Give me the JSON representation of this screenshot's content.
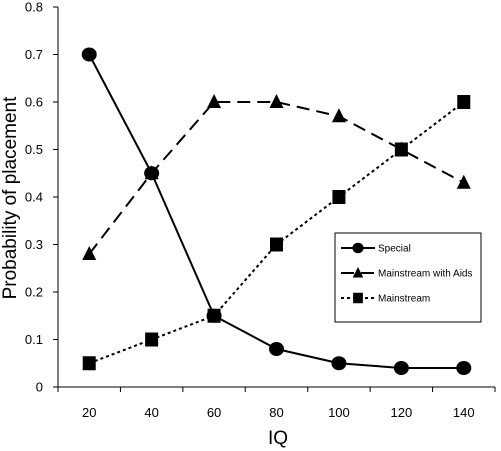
{
  "chart_data": {
    "type": "line",
    "xlabel": "IQ",
    "ylabel": "Probability  of placement",
    "categories": [
      "20",
      "40",
      "60",
      "80",
      "100",
      "120",
      "140"
    ],
    "x": [
      20,
      40,
      60,
      80,
      100,
      120,
      140
    ],
    "ylim": [
      0,
      0.8
    ],
    "yticks": [
      "0",
      "0.1",
      "0.2",
      "0.3",
      "0.4",
      "0.5",
      "0.6",
      "0.7",
      "0.8"
    ],
    "grid": false,
    "legend_position": "right",
    "series": [
      {
        "name": "Special",
        "marker": "circle",
        "line": "solid",
        "values": [
          0.7,
          0.45,
          0.15,
          0.08,
          0.05,
          0.04,
          0.04
        ]
      },
      {
        "name": "Mainstream with Aids",
        "marker": "triangle",
        "line": "dashed",
        "values": [
          0.28,
          0.45,
          0.6,
          0.6,
          0.57,
          0.5,
          0.43
        ]
      },
      {
        "name": "Mainstream",
        "marker": "square",
        "line": "dotted",
        "values": [
          0.05,
          0.1,
          0.15,
          0.3,
          0.4,
          0.5,
          0.6
        ]
      }
    ],
    "colors": {
      "line": "#000000",
      "background": "#ffffff"
    }
  }
}
